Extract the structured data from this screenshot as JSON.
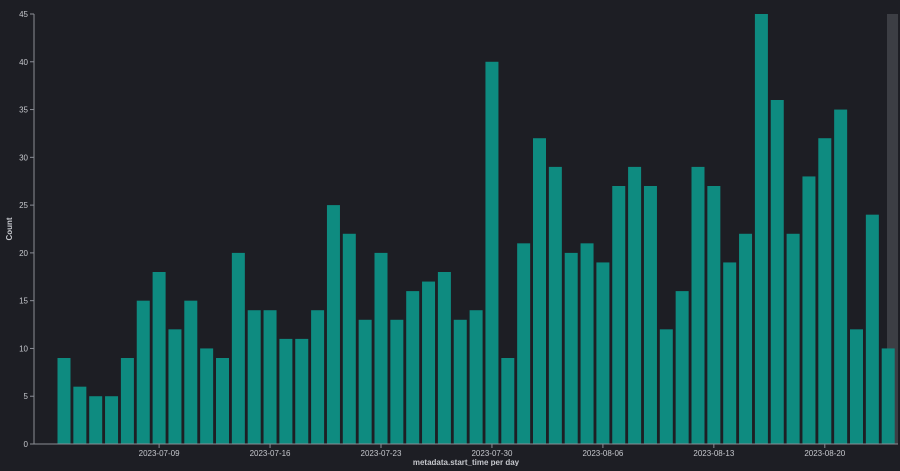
{
  "chart_data": {
    "type": "bar",
    "xlabel": "metadata.start_time per day",
    "ylabel": "Count",
    "ylim": [
      0,
      45
    ],
    "yticks": [
      0,
      5,
      10,
      15,
      20,
      25,
      30,
      35,
      40,
      45
    ],
    "categories": [
      "2023-07-03",
      "2023-07-04",
      "2023-07-05",
      "2023-07-06",
      "2023-07-07",
      "2023-07-08",
      "2023-07-09",
      "2023-07-10",
      "2023-07-11",
      "2023-07-12",
      "2023-07-13",
      "2023-07-14",
      "2023-07-15",
      "2023-07-16",
      "2023-07-17",
      "2023-07-18",
      "2023-07-19",
      "2023-07-20",
      "2023-07-21",
      "2023-07-22",
      "2023-07-23",
      "2023-07-24",
      "2023-07-25",
      "2023-07-26",
      "2023-07-27",
      "2023-07-28",
      "2023-07-29",
      "2023-07-30",
      "2023-07-31",
      "2023-08-01",
      "2023-08-02",
      "2023-08-03",
      "2023-08-04",
      "2023-08-05",
      "2023-08-06",
      "2023-08-07",
      "2023-08-08",
      "2023-08-09",
      "2023-08-10",
      "2023-08-11",
      "2023-08-12",
      "2023-08-13",
      "2023-08-14",
      "2023-08-15",
      "2023-08-16",
      "2023-08-17",
      "2023-08-18",
      "2023-08-19",
      "2023-08-20",
      "2023-08-21",
      "2023-08-22",
      "2023-08-23",
      "2023-08-24"
    ],
    "values": [
      9,
      6,
      5,
      5,
      9,
      15,
      18,
      12,
      15,
      10,
      9,
      20,
      14,
      14,
      11,
      11,
      14,
      25,
      22,
      13,
      20,
      13,
      16,
      17,
      18,
      13,
      14,
      40,
      9,
      21,
      32,
      29,
      20,
      21,
      19,
      27,
      29,
      27,
      12,
      16,
      29,
      27,
      19,
      22,
      45,
      36,
      22,
      28,
      32,
      35,
      12,
      24,
      10
    ],
    "xtick_labels": [
      "2023-07-09",
      "2023-07-16",
      "2023-07-23",
      "2023-07-30",
      "2023-08-06",
      "2023-08-13",
      "2023-08-20"
    ],
    "colors": {
      "bar": "#0e8b80",
      "background": "#1d1e24",
      "axis": "#8a8d95",
      "text": "#c5c7cc",
      "highlight": "#3c3e44"
    },
    "grid": false
  }
}
